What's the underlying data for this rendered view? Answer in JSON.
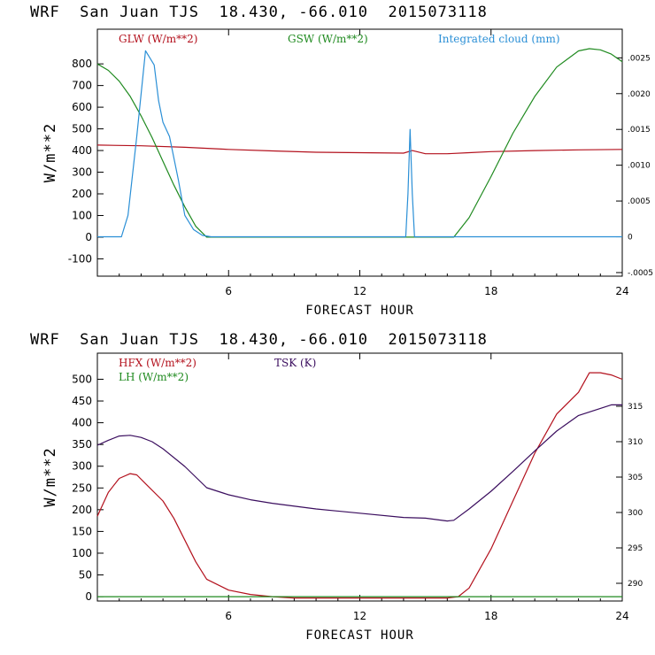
{
  "colors": {
    "red": "#b3111d",
    "green": "#1f8a1f",
    "blue": "#2a8fd6",
    "purple": "#3a0d5e"
  },
  "chart_data": [
    {
      "type": "line",
      "title": "WRF  San Juan TJS  18.430, -66.010  2015073118",
      "xlabel": "FORECAST HOUR",
      "ylabel": "W/m**2",
      "xlim": [
        0,
        24
      ],
      "ylim": [
        -180,
        960
      ],
      "y2lim": [
        -0.00055,
        0.0029
      ],
      "x_ticks": [
        "6",
        "12",
        "18",
        "24"
      ],
      "y_ticks": [
        "-100",
        "0",
        "100",
        "200",
        "300",
        "400",
        "500",
        "600",
        "700",
        "800"
      ],
      "y2_ticks": [
        "-.0005",
        "0",
        ".0005",
        ".0010",
        ".0015",
        ".0020",
        ".0025"
      ],
      "legend": [
        "GLW (W/m**2)",
        "GSW (W/m**2)",
        "Integrated cloud (mm)"
      ],
      "series": [
        {
          "name": "GLW (W/m**2)",
          "color": "red",
          "axis": "left",
          "x": [
            0,
            2,
            4,
            6,
            8,
            10,
            12,
            14,
            14.4,
            15,
            16,
            17,
            18,
            20,
            22,
            24
          ],
          "y": [
            425,
            422,
            415,
            405,
            398,
            392,
            390,
            388,
            400,
            385,
            385,
            390,
            395,
            400,
            403,
            405
          ]
        },
        {
          "name": "GSW (W/m**2)",
          "color": "green",
          "axis": "left",
          "x": [
            0,
            0.5,
            1,
            1.5,
            2,
            2.5,
            3,
            3.5,
            4,
            4.5,
            5,
            16.3,
            17,
            18,
            19,
            20,
            21,
            22,
            22.5,
            23,
            23.5,
            24
          ],
          "y": [
            800,
            770,
            720,
            650,
            560,
            460,
            350,
            240,
            140,
            50,
            0,
            0,
            90,
            280,
            480,
            650,
            785,
            860,
            870,
            865,
            845,
            810
          ]
        },
        {
          "name": "Integrated cloud (mm)",
          "color": "blue",
          "axis": "right",
          "x": [
            0,
            1.1,
            1.4,
            1.8,
            2.2,
            2.6,
            2.8,
            3.0,
            3.3,
            3.7,
            4.0,
            4.4,
            4.8,
            5.2,
            14.1,
            14.2,
            14.3,
            14.4,
            14.5,
            14.6,
            24
          ],
          "y": [
            0,
            0,
            0.0003,
            0.0014,
            0.0026,
            0.0024,
            0.0019,
            0.0016,
            0.0014,
            0.0008,
            0.0003,
            0.0001,
            2e-05,
            0,
            0,
            0.0006,
            0.0015,
            0.0006,
            0,
            0,
            0
          ]
        }
      ]
    },
    {
      "type": "line",
      "title": "WRF  San Juan TJS  18.430, -66.010  2015073118",
      "xlabel": "FORECAST HOUR",
      "ylabel": "W/m**2",
      "xlim": [
        0,
        24
      ],
      "ylim": [
        -10,
        560
      ],
      "y2lim": [
        287.5,
        322.5
      ],
      "x_ticks": [
        "6",
        "12",
        "18",
        "24"
      ],
      "y_ticks": [
        "0",
        "50",
        "100",
        "150",
        "200",
        "250",
        "300",
        "350",
        "400",
        "450",
        "500"
      ],
      "y2_ticks": [
        "290",
        "295",
        "300",
        "305",
        "310",
        "315"
      ],
      "legend": [
        "HFX (W/m**2)",
        "LH  (W/m**2)",
        "TSK (K)"
      ],
      "series": [
        {
          "name": "HFX (W/m**2)",
          "color": "red",
          "axis": "left",
          "x": [
            0,
            0.5,
            1,
            1.5,
            1.8,
            2.2,
            3,
            3.5,
            4,
            4.5,
            5,
            6,
            7,
            8,
            9,
            10,
            12,
            14,
            16,
            16.5,
            17,
            18,
            19,
            20,
            21,
            22,
            22.5,
            23,
            23.5,
            24
          ],
          "y": [
            185,
            240,
            272,
            283,
            280,
            260,
            220,
            180,
            130,
            80,
            40,
            15,
            5,
            0,
            -3,
            -3,
            -3,
            -3,
            -3,
            0,
            20,
            110,
            220,
            330,
            420,
            470,
            515,
            515,
            510,
            500
          ]
        },
        {
          "name": "LH  (W/m**2)",
          "color": "green",
          "axis": "left",
          "x": [
            0,
            24
          ],
          "y": [
            0,
            0
          ]
        },
        {
          "name": "TSK (K)",
          "color": "purple",
          "axis": "right",
          "x": [
            0,
            0.5,
            1,
            1.5,
            2,
            2.5,
            3,
            4,
            5,
            6,
            7,
            8,
            10,
            12,
            14,
            15,
            16,
            16.3,
            17,
            18,
            19,
            20,
            21,
            22,
            23,
            23.5,
            24
          ],
          "y": [
            309.5,
            310.2,
            310.8,
            310.9,
            310.6,
            310.0,
            309.0,
            306.5,
            303.5,
            302.5,
            301.8,
            301.3,
            300.5,
            299.9,
            299.3,
            299.2,
            298.8,
            298.9,
            300.5,
            303.0,
            305.8,
            308.7,
            311.5,
            313.7,
            314.7,
            315.2,
            315.2
          ]
        }
      ]
    }
  ]
}
